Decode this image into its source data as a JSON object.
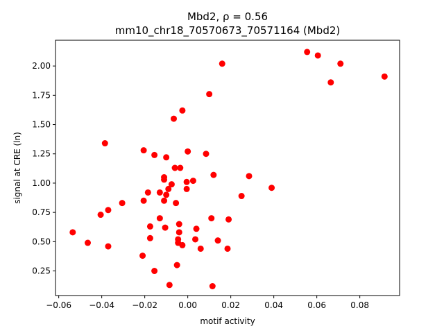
{
  "chart_data": {
    "type": "scatter",
    "title_line1": "Mbd2, ρ = 0.56",
    "title_line2": "mm10_chr18_70570673_70571164 (Mbd2)",
    "xlabel": "motif activity",
    "ylabel": "signal at CRE (ln)",
    "xlim": [
      -0.0615,
      0.0985
    ],
    "ylim": [
      0.04,
      2.22
    ],
    "x_ticks": [
      -0.06,
      -0.04,
      -0.02,
      0.0,
      0.02,
      0.04,
      0.06,
      0.08
    ],
    "x_tick_labels": [
      "−0.06",
      "−0.04",
      "−0.02",
      "0.00",
      "0.02",
      "0.04",
      "0.06",
      "0.08"
    ],
    "y_ticks": [
      0.25,
      0.5,
      0.75,
      1.0,
      1.25,
      1.5,
      1.75,
      2.0
    ],
    "y_tick_labels": [
      "0.25",
      "0.50",
      "0.75",
      "1.00",
      "1.25",
      "1.50",
      "1.75",
      "2.00"
    ],
    "grid": false,
    "marker_color": "#ff0000",
    "points": [
      {
        "x": 0.0555,
        "y": 2.12
      },
      {
        "x": 0.0605,
        "y": 2.09
      },
      {
        "x": 0.071,
        "y": 2.02
      },
      {
        "x": 0.0915,
        "y": 1.91
      },
      {
        "x": 0.0665,
        "y": 1.86
      },
      {
        "x": 0.016,
        "y": 2.02
      },
      {
        "x": 0.01,
        "y": 1.76
      },
      {
        "x": -0.0025,
        "y": 1.62
      },
      {
        "x": -0.0065,
        "y": 1.55
      },
      {
        "x": -0.0385,
        "y": 1.34
      },
      {
        "x": -0.0205,
        "y": 1.28
      },
      {
        "x": -0.0155,
        "y": 1.24
      },
      {
        "x": -0.01,
        "y": 1.22
      },
      {
        "x": -0.0,
        "y": 1.27
      },
      {
        "x": 0.0085,
        "y": 1.25
      },
      {
        "x": -0.006,
        "y": 1.13
      },
      {
        "x": -0.0035,
        "y": 1.13
      },
      {
        "x": -0.011,
        "y": 1.05
      },
      {
        "x": -0.011,
        "y": 1.03
      },
      {
        "x": 0.012,
        "y": 1.07
      },
      {
        "x": 0.0285,
        "y": 1.06
      },
      {
        "x": -0.0005,
        "y": 1.01
      },
      {
        "x": 0.0025,
        "y": 1.02
      },
      {
        "x": -0.0075,
        "y": 0.99
      },
      {
        "x": -0.0005,
        "y": 0.95
      },
      {
        "x": -0.009,
        "y": 0.95
      },
      {
        "x": -0.013,
        "y": 0.92
      },
      {
        "x": -0.0185,
        "y": 0.92
      },
      {
        "x": -0.01,
        "y": 0.9
      },
      {
        "x": 0.039,
        "y": 0.96
      },
      {
        "x": 0.025,
        "y": 0.89
      },
      {
        "x": -0.011,
        "y": 0.85
      },
      {
        "x": -0.0055,
        "y": 0.83
      },
      {
        "x": -0.0305,
        "y": 0.83
      },
      {
        "x": -0.0205,
        "y": 0.85
      },
      {
        "x": -0.037,
        "y": 0.77
      },
      {
        "x": -0.0405,
        "y": 0.73
      },
      {
        "x": -0.013,
        "y": 0.7
      },
      {
        "x": 0.011,
        "y": 0.7
      },
      {
        "x": 0.019,
        "y": 0.69
      },
      {
        "x": -0.0175,
        "y": 0.63
      },
      {
        "x": -0.0105,
        "y": 0.62
      },
      {
        "x": -0.004,
        "y": 0.65
      },
      {
        "x": 0.004,
        "y": 0.61
      },
      {
        "x": -0.004,
        "y": 0.58
      },
      {
        "x": -0.0535,
        "y": 0.58
      },
      {
        "x": -0.0175,
        "y": 0.53
      },
      {
        "x": -0.0045,
        "y": 0.52
      },
      {
        "x": -0.0045,
        "y": 0.49
      },
      {
        "x": 0.0035,
        "y": 0.52
      },
      {
        "x": 0.014,
        "y": 0.51
      },
      {
        "x": -0.0465,
        "y": 0.49
      },
      {
        "x": -0.037,
        "y": 0.46
      },
      {
        "x": -0.0025,
        "y": 0.47
      },
      {
        "x": 0.006,
        "y": 0.44
      },
      {
        "x": 0.0185,
        "y": 0.44
      },
      {
        "x": -0.021,
        "y": 0.38
      },
      {
        "x": -0.005,
        "y": 0.3
      },
      {
        "x": -0.0155,
        "y": 0.25
      },
      {
        "x": -0.0085,
        "y": 0.13
      },
      {
        "x": 0.0115,
        "y": 0.12
      }
    ]
  }
}
